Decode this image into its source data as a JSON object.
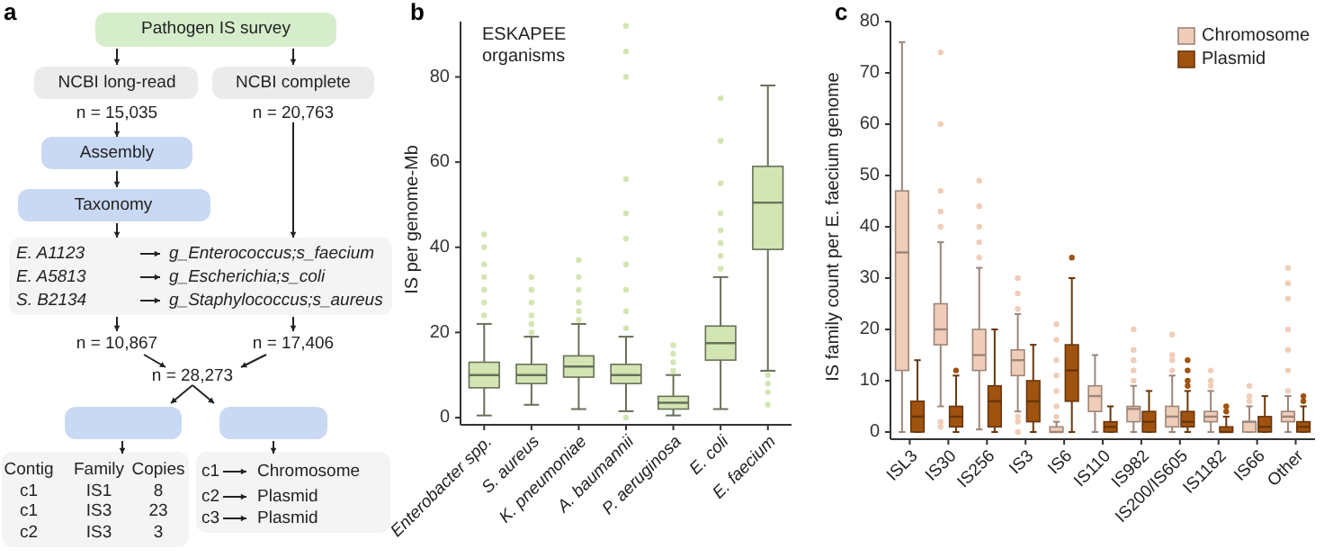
{
  "chart_data": [
    {
      "type": "other",
      "title": "a",
      "annotations": [
        "Pathogen IS survey",
        "NCBI long-read",
        "NCBI complete",
        "n = 15,035",
        "n = 20,763",
        "Assembly",
        "Taxonomy",
        "E. A1123",
        "g_Enterococcus;s_faecium",
        "E. A5813",
        "g_Escherichia;s_coli",
        "S. B2134",
        "g_Staphylococcus;s_aureus",
        "n = 10,867",
        "n = 17,406",
        "n = 28,273",
        "Contig",
        "Family",
        "Copies",
        "c1",
        "IS1",
        "8",
        "c1",
        "IS3",
        "23",
        "c2",
        "IS3",
        "3",
        "c1",
        "Chromosome",
        "c2",
        "Plasmid",
        "c3",
        "Plasmid"
      ]
    },
    {
      "type": "box",
      "title": "b",
      "ylabel": "IS per genome-Mb",
      "annotations": [
        "ESKAPEE organisms"
      ],
      "categories": [
        "Enterobacter spp.",
        "S. aureus",
        "K. pneumoniae",
        "A. baumannii",
        "P. aeruginosa",
        "E. coli",
        "E. faecium"
      ],
      "ylim": [
        0,
        93
      ],
      "yticks": [
        0,
        20,
        40,
        60,
        80
      ],
      "color": "#d3e5b3",
      "boxes": [
        {
          "low": 0.5,
          "q1": 7,
          "median": 10,
          "q3": 13,
          "high": 22,
          "outliers": [
            24,
            27,
            30,
            33,
            36,
            40,
            43
          ]
        },
        {
          "low": 3,
          "q1": 8,
          "median": 10,
          "q3": 12.5,
          "high": 19,
          "outliers": [
            20,
            22,
            24,
            27,
            30,
            33
          ]
        },
        {
          "low": 2,
          "q1": 9.5,
          "median": 12,
          "q3": 14.5,
          "high": 22,
          "outliers": [
            23,
            25,
            27,
            30,
            33,
            37
          ]
        },
        {
          "low": 1.5,
          "q1": 8,
          "median": 10,
          "q3": 12.5,
          "high": 19,
          "outliers": [
            0,
            21,
            25,
            30,
            36,
            42,
            48,
            56,
            80,
            86,
            92
          ]
        },
        {
          "low": 0.5,
          "q1": 2,
          "median": 3.5,
          "q3": 5,
          "high": 10,
          "outliers": [
            11,
            13,
            15,
            17
          ]
        },
        {
          "low": 2,
          "q1": 13.5,
          "median": 17.5,
          "q3": 21.5,
          "high": 33,
          "outliers": [
            35,
            38,
            41,
            44,
            48,
            55,
            65,
            75
          ]
        },
        {
          "low": 11,
          "q1": 39.5,
          "median": 50.5,
          "q3": 59,
          "high": 78,
          "outliers": [
            3,
            6,
            8,
            10
          ]
        }
      ]
    },
    {
      "type": "box",
      "title": "c",
      "ylabel": "IS family count per E. faecium genome",
      "legend": "top right",
      "categories": [
        "ISL3",
        "IS30",
        "IS256",
        "IS3",
        "IS6",
        "IS110",
        "IS982",
        "IS200/IS605",
        "IS1182",
        "IS66",
        "Other"
      ],
      "ylim": [
        0,
        80
      ],
      "yticks": [
        0,
        10,
        20,
        30,
        40,
        50,
        60,
        70,
        80
      ],
      "series": [
        {
          "name": "Chromosome",
          "color": "#f0cdb8",
          "boxes": [
            {
              "low": 0,
              "q1": 12,
              "median": 35,
              "q3": 47,
              "high": 76
            },
            {
              "low": 5,
              "q1": 17,
              "median": 20,
              "q3": 25,
              "high": 37,
              "outliers": [
                1,
                2,
                40,
                43,
                47,
                60,
                74
              ]
            },
            {
              "low": 0.5,
              "q1": 12,
              "median": 15,
              "q3": 20,
              "high": 32,
              "outliers": [
                34,
                37,
                40,
                44,
                49
              ]
            },
            {
              "low": 4,
              "q1": 11,
              "median": 14,
              "q3": 16,
              "high": 23,
              "outliers": [
                0,
                2,
                3,
                24,
                27,
                30
              ]
            },
            {
              "low": 0,
              "q1": 0,
              "median": 0,
              "q3": 1,
              "high": 2,
              "outliers": [
                3,
                5,
                8,
                11,
                14,
                18,
                21
              ]
            },
            {
              "low": 0,
              "q1": 4,
              "median": 7,
              "q3": 9,
              "high": 15
            },
            {
              "low": 0,
              "q1": 2,
              "median": 4.5,
              "q3": 5,
              "high": 9,
              "outliers": [
                10,
                12,
                14,
                16,
                20
              ]
            },
            {
              "low": 0,
              "q1": 1,
              "median": 3,
              "q3": 5,
              "high": 11,
              "outliers": [
                12,
                14,
                15,
                19
              ]
            },
            {
              "low": 0,
              "q1": 2,
              "median": 3,
              "q3": 4,
              "high": 8,
              "outliers": [
                9,
                10,
                12
              ]
            },
            {
              "low": 0,
              "q1": 0,
              "median": 2,
              "q3": 2,
              "high": 5,
              "outliers": [
                6,
                7,
                9
              ]
            },
            {
              "low": 0,
              "q1": 2,
              "median": 3,
              "q3": 4,
              "high": 7,
              "outliers": [
                8,
                12,
                16,
                20,
                26,
                29,
                32
              ]
            }
          ]
        },
        {
          "name": "Plasmid",
          "color": "#a0520f",
          "boxes": [
            {
              "low": 0,
              "q1": 0,
              "median": 3,
              "q3": 6,
              "high": 14
            },
            {
              "low": 0,
              "q1": 1,
              "median": 3,
              "q3": 5,
              "high": 11,
              "outliers": [
                12
              ]
            },
            {
              "low": 0,
              "q1": 1,
              "median": 6,
              "q3": 9,
              "high": 20
            },
            {
              "low": 0,
              "q1": 2,
              "median": 6,
              "q3": 10,
              "high": 17
            },
            {
              "low": 0,
              "q1": 6,
              "median": 12,
              "q3": 17,
              "high": 30,
              "outliers": [
                34
              ]
            },
            {
              "low": 0,
              "q1": 0,
              "median": 1,
              "q3": 2,
              "high": 5
            },
            {
              "low": 0,
              "q1": 0,
              "median": 2,
              "q3": 4,
              "high": 8
            },
            {
              "low": 0,
              "q1": 1,
              "median": 2,
              "q3": 4,
              "high": 8,
              "outliers": [
                9,
                10,
                12,
                14
              ]
            },
            {
              "low": 0,
              "q1": 0,
              "median": 0,
              "q3": 1,
              "high": 3,
              "outliers": [
                4,
                5
              ]
            },
            {
              "low": 0,
              "q1": 0,
              "median": 1,
              "q3": 3,
              "high": 7
            },
            {
              "low": 0,
              "q1": 0,
              "median": 1,
              "q3": 2,
              "high": 5,
              "outliers": [
                6,
                7
              ]
            }
          ]
        }
      ]
    }
  ]
}
